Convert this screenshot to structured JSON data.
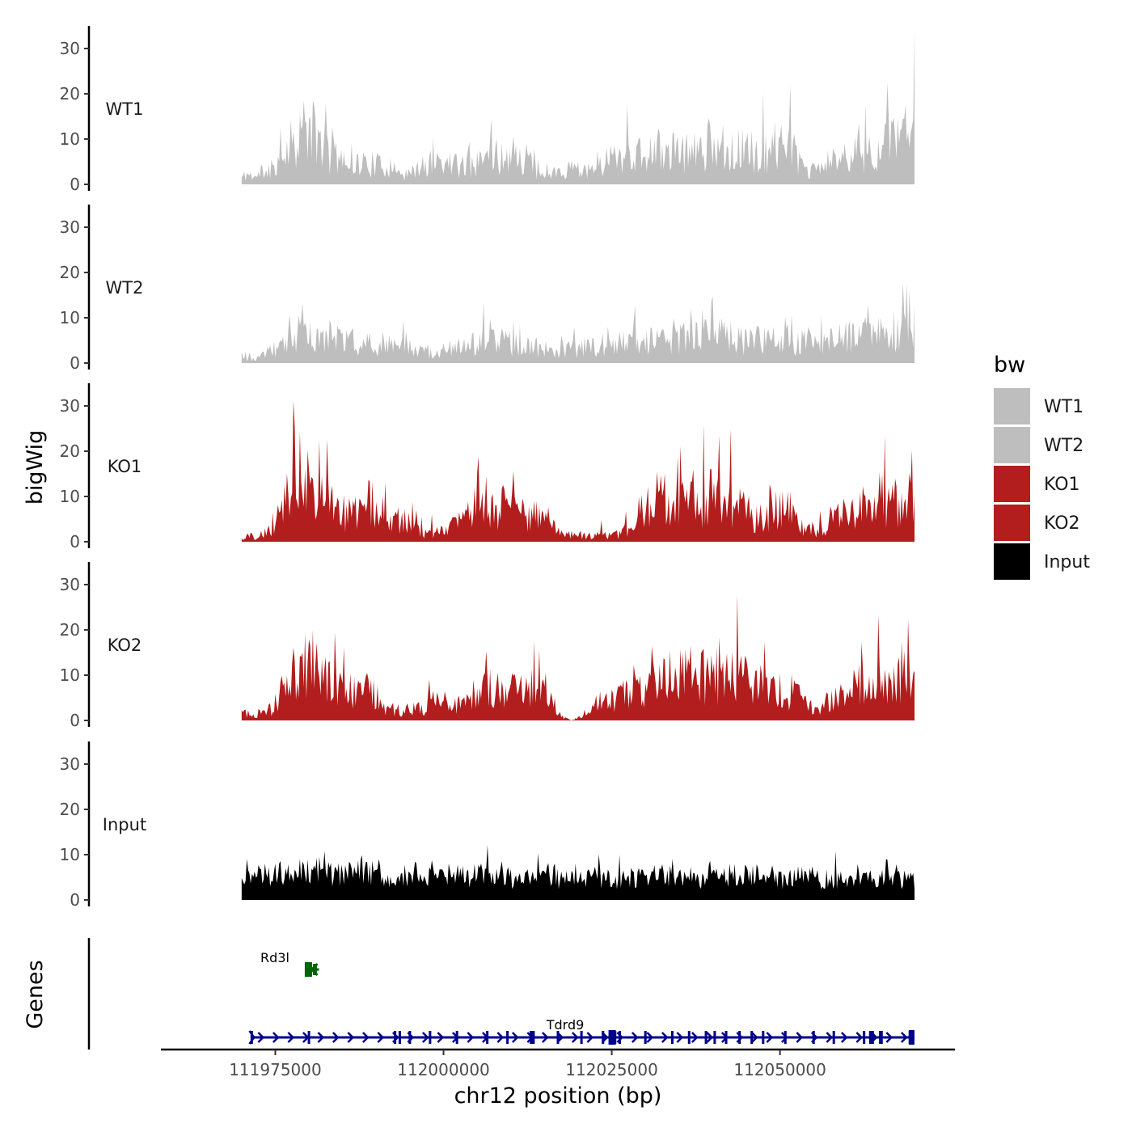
{
  "chart_data": {
    "type": "area",
    "genome": "chr12",
    "xlabel": "chr12 position (bp)",
    "xlim": [
      111958000,
      112076000
    ],
    "data_range": [
      111970000,
      112070000
    ],
    "x_ticks": [
      111975000,
      112000000,
      112025000,
      112050000
    ],
    "x_tick_labels": [
      "111975000",
      "112000000",
      "112025000",
      "112050000"
    ],
    "ylabel": "bigWig",
    "ylim": [
      0,
      35
    ],
    "y_ticks": [
      0,
      10,
      20,
      30
    ],
    "y_tick_labels": [
      "0",
      "10",
      "20",
      "30"
    ],
    "colors": {
      "WT": "#bebebe",
      "KO": "#b21e1e",
      "Input": "#000000",
      "gene_blue": "#00008b",
      "gene_green": "#006400",
      "axis": "#000000"
    },
    "series": [
      {
        "name": "WT1",
        "color": "#bebebe",
        "profile_x": [
          111970000,
          111971000,
          111972000,
          111974000,
          111975500,
          111976500,
          111977500,
          111978500,
          111979500,
          111981000,
          111982000,
          111983500,
          111985000,
          111987000,
          111989000,
          111991000,
          111993000,
          111995000,
          111997000,
          111999000,
          112001000,
          112003000,
          112005000,
          112007000,
          112009000,
          112011000,
          112013000,
          112014500,
          112016000,
          112018000,
          112020000,
          112022000,
          112024000,
          112026000,
          112028000,
          112030000,
          112032000,
          112034000,
          112036000,
          112038000,
          112040000,
          112042000,
          112044000,
          112046000,
          112048000,
          112050000,
          112052000,
          112054000,
          112056000,
          112058000,
          112060000,
          112062000,
          112064000,
          112066000,
          112068000,
          112069000,
          112070000
        ],
        "profile_y": [
          2,
          3,
          2,
          4,
          7,
          10,
          13,
          15,
          16,
          14,
          11,
          8,
          7,
          6,
          6,
          5,
          4,
          3,
          5,
          7,
          6,
          5,
          6,
          8,
          8,
          9,
          6,
          2,
          3,
          3,
          4,
          5,
          7,
          9,
          8,
          8,
          10,
          9,
          9,
          10,
          12,
          11,
          10,
          8,
          9,
          12,
          9,
          3,
          5,
          7,
          8,
          9,
          10,
          11,
          12,
          16,
          17
        ]
      },
      {
        "name": "WT2",
        "color": "#bebebe",
        "profile_x": [
          111970000,
          111971000,
          111972000,
          111974000,
          111975500,
          111977000,
          111979000,
          111981000,
          111983000,
          111985000,
          111987000,
          111989000,
          111991000,
          111993000,
          111995000,
          111997000,
          111999000,
          112001000,
          112003000,
          112005000,
          112007000,
          112009000,
          112011000,
          112013000,
          112015000,
          112017000,
          112019000,
          112021000,
          112023000,
          112025000,
          112027000,
          112029000,
          112031000,
          112033000,
          112035000,
          112037000,
          112039000,
          112041000,
          112043000,
          112045000,
          112047000,
          112049000,
          112051000,
          112053000,
          112055000,
          112057000,
          112059000,
          112061000,
          112063000,
          112065000,
          112067000,
          112069000,
          112070000
        ],
        "profile_y": [
          2,
          2,
          1,
          3,
          5,
          7,
          9,
          9,
          8,
          7,
          6,
          6,
          5,
          5,
          4,
          3,
          3,
          4,
          5,
          6,
          6,
          6,
          5,
          5,
          4,
          3,
          4,
          4,
          5,
          6,
          6,
          7,
          6,
          6,
          7,
          8,
          8,
          9,
          7,
          6,
          7,
          7,
          6,
          6,
          5,
          6,
          7,
          8,
          8,
          8,
          9,
          10,
          11
        ]
      },
      {
        "name": "KO1",
        "color": "#b21e1e",
        "profile_x": [
          111970000,
          111971000,
          111972000,
          111974000,
          111975500,
          111976500,
          111977500,
          111978500,
          111979500,
          111980500,
          111981500,
          111982500,
          111983500,
          111985000,
          111987000,
          111989000,
          111991000,
          111993000,
          111995000,
          111997000,
          111999000,
          112001000,
          112003000,
          112004500,
          112005000,
          112005500,
          112006500,
          112008000,
          112010000,
          112012000,
          112014000,
          112016000,
          112018000,
          112020000,
          112022000,
          112024000,
          112026000,
          112028000,
          112030000,
          112032000,
          112034000,
          112036000,
          112038000,
          112040000,
          112042000,
          112044000,
          112046000,
          112048000,
          112050000,
          112052000,
          112054000,
          112056000,
          112058000,
          112060000,
          112062000,
          112064000,
          112066000,
          112068000,
          112069000,
          112070000
        ],
        "profile_y": [
          1,
          2,
          1,
          3,
          8,
          13,
          17,
          19,
          20,
          19,
          17,
          13,
          10,
          8,
          8,
          11,
          9,
          7,
          5,
          3,
          3,
          4,
          6,
          8,
          20,
          9,
          9,
          9,
          9,
          8,
          7,
          4,
          2,
          2,
          2,
          2,
          2,
          5,
          11,
          13,
          10,
          11,
          10,
          13,
          12,
          10,
          7,
          7,
          10,
          7,
          3,
          4,
          7,
          8,
          10,
          9,
          12,
          10,
          14,
          17
        ]
      },
      {
        "name": "KO2",
        "color": "#b21e1e",
        "profile_x": [
          111970000,
          111971000,
          111972000,
          111974000,
          111975500,
          111976500,
          111977500,
          111978500,
          111979500,
          111980500,
          111981500,
          111982500,
          111983500,
          111985000,
          111987000,
          111989000,
          111991000,
          111993000,
          111995000,
          111997000,
          111999000,
          112001000,
          112003000,
          112005000,
          112007000,
          112009000,
          112011000,
          112013000,
          112015000,
          112016500,
          112017500,
          112019000,
          112021000,
          112023000,
          112025000,
          112027000,
          112029000,
          112031000,
          112033000,
          112035000,
          112037000,
          112039000,
          112041000,
          112043000,
          112045000,
          112047000,
          112049000,
          112051000,
          112053000,
          112055000,
          112057000,
          112059000,
          112061000,
          112063000,
          112065000,
          112067000,
          112069000,
          112070000
        ],
        "profile_y": [
          2,
          2,
          1,
          3,
          6,
          10,
          14,
          16,
          17,
          16,
          15,
          12,
          10,
          9,
          9,
          8,
          5,
          3,
          3,
          4,
          6,
          6,
          4,
          7,
          9,
          9,
          9,
          9,
          8,
          4,
          1,
          0,
          2,
          4,
          6,
          7,
          8,
          10,
          12,
          13,
          13,
          12,
          11,
          13,
          12,
          10,
          8,
          9,
          7,
          2,
          5,
          7,
          9,
          10,
          10,
          10,
          13,
          15
        ]
      },
      {
        "name": "Input",
        "color": "#000000",
        "profile_x": [
          111970000,
          111973000,
          111976000,
          111979000,
          111982000,
          111985000,
          111988000,
          111991000,
          111994000,
          111997000,
          112000000,
          112003000,
          112006000,
          112009000,
          112012000,
          112015000,
          112018000,
          112021000,
          112024000,
          112027000,
          112030000,
          112033000,
          112036000,
          112039000,
          112042000,
          112045000,
          112048000,
          112051000,
          112054000,
          112057000,
          112060000,
          112063000,
          112066000,
          112068000,
          112070000
        ],
        "profile_y": [
          6,
          6,
          7,
          8,
          7,
          6,
          7,
          6,
          6,
          7,
          6,
          6,
          6,
          5,
          5,
          6,
          5,
          6,
          5,
          5,
          6,
          6,
          5,
          5,
          6,
          6,
          5,
          5,
          6,
          5,
          5,
          5,
          5,
          5,
          5
        ]
      }
    ],
    "genes_label": "Genes",
    "genes": [
      {
        "name": "Rd3l",
        "start": 111979500,
        "end": 111981500,
        "strand": "-",
        "color": "#006400",
        "row": 1
      },
      {
        "name": "Tdrd9",
        "start": 111971500,
        "end": 112070000,
        "strand": "+",
        "color": "#00008b",
        "row": 2
      }
    ],
    "legend": {
      "title": "bw",
      "position": "right",
      "entries": [
        {
          "label": "WT1",
          "color": "#bebebe"
        },
        {
          "label": "WT2",
          "color": "#bebebe"
        },
        {
          "label": "KO1",
          "color": "#b21e1e"
        },
        {
          "label": "KO2",
          "color": "#b21e1e"
        },
        {
          "label": "Input",
          "color": "#000000"
        }
      ]
    }
  }
}
